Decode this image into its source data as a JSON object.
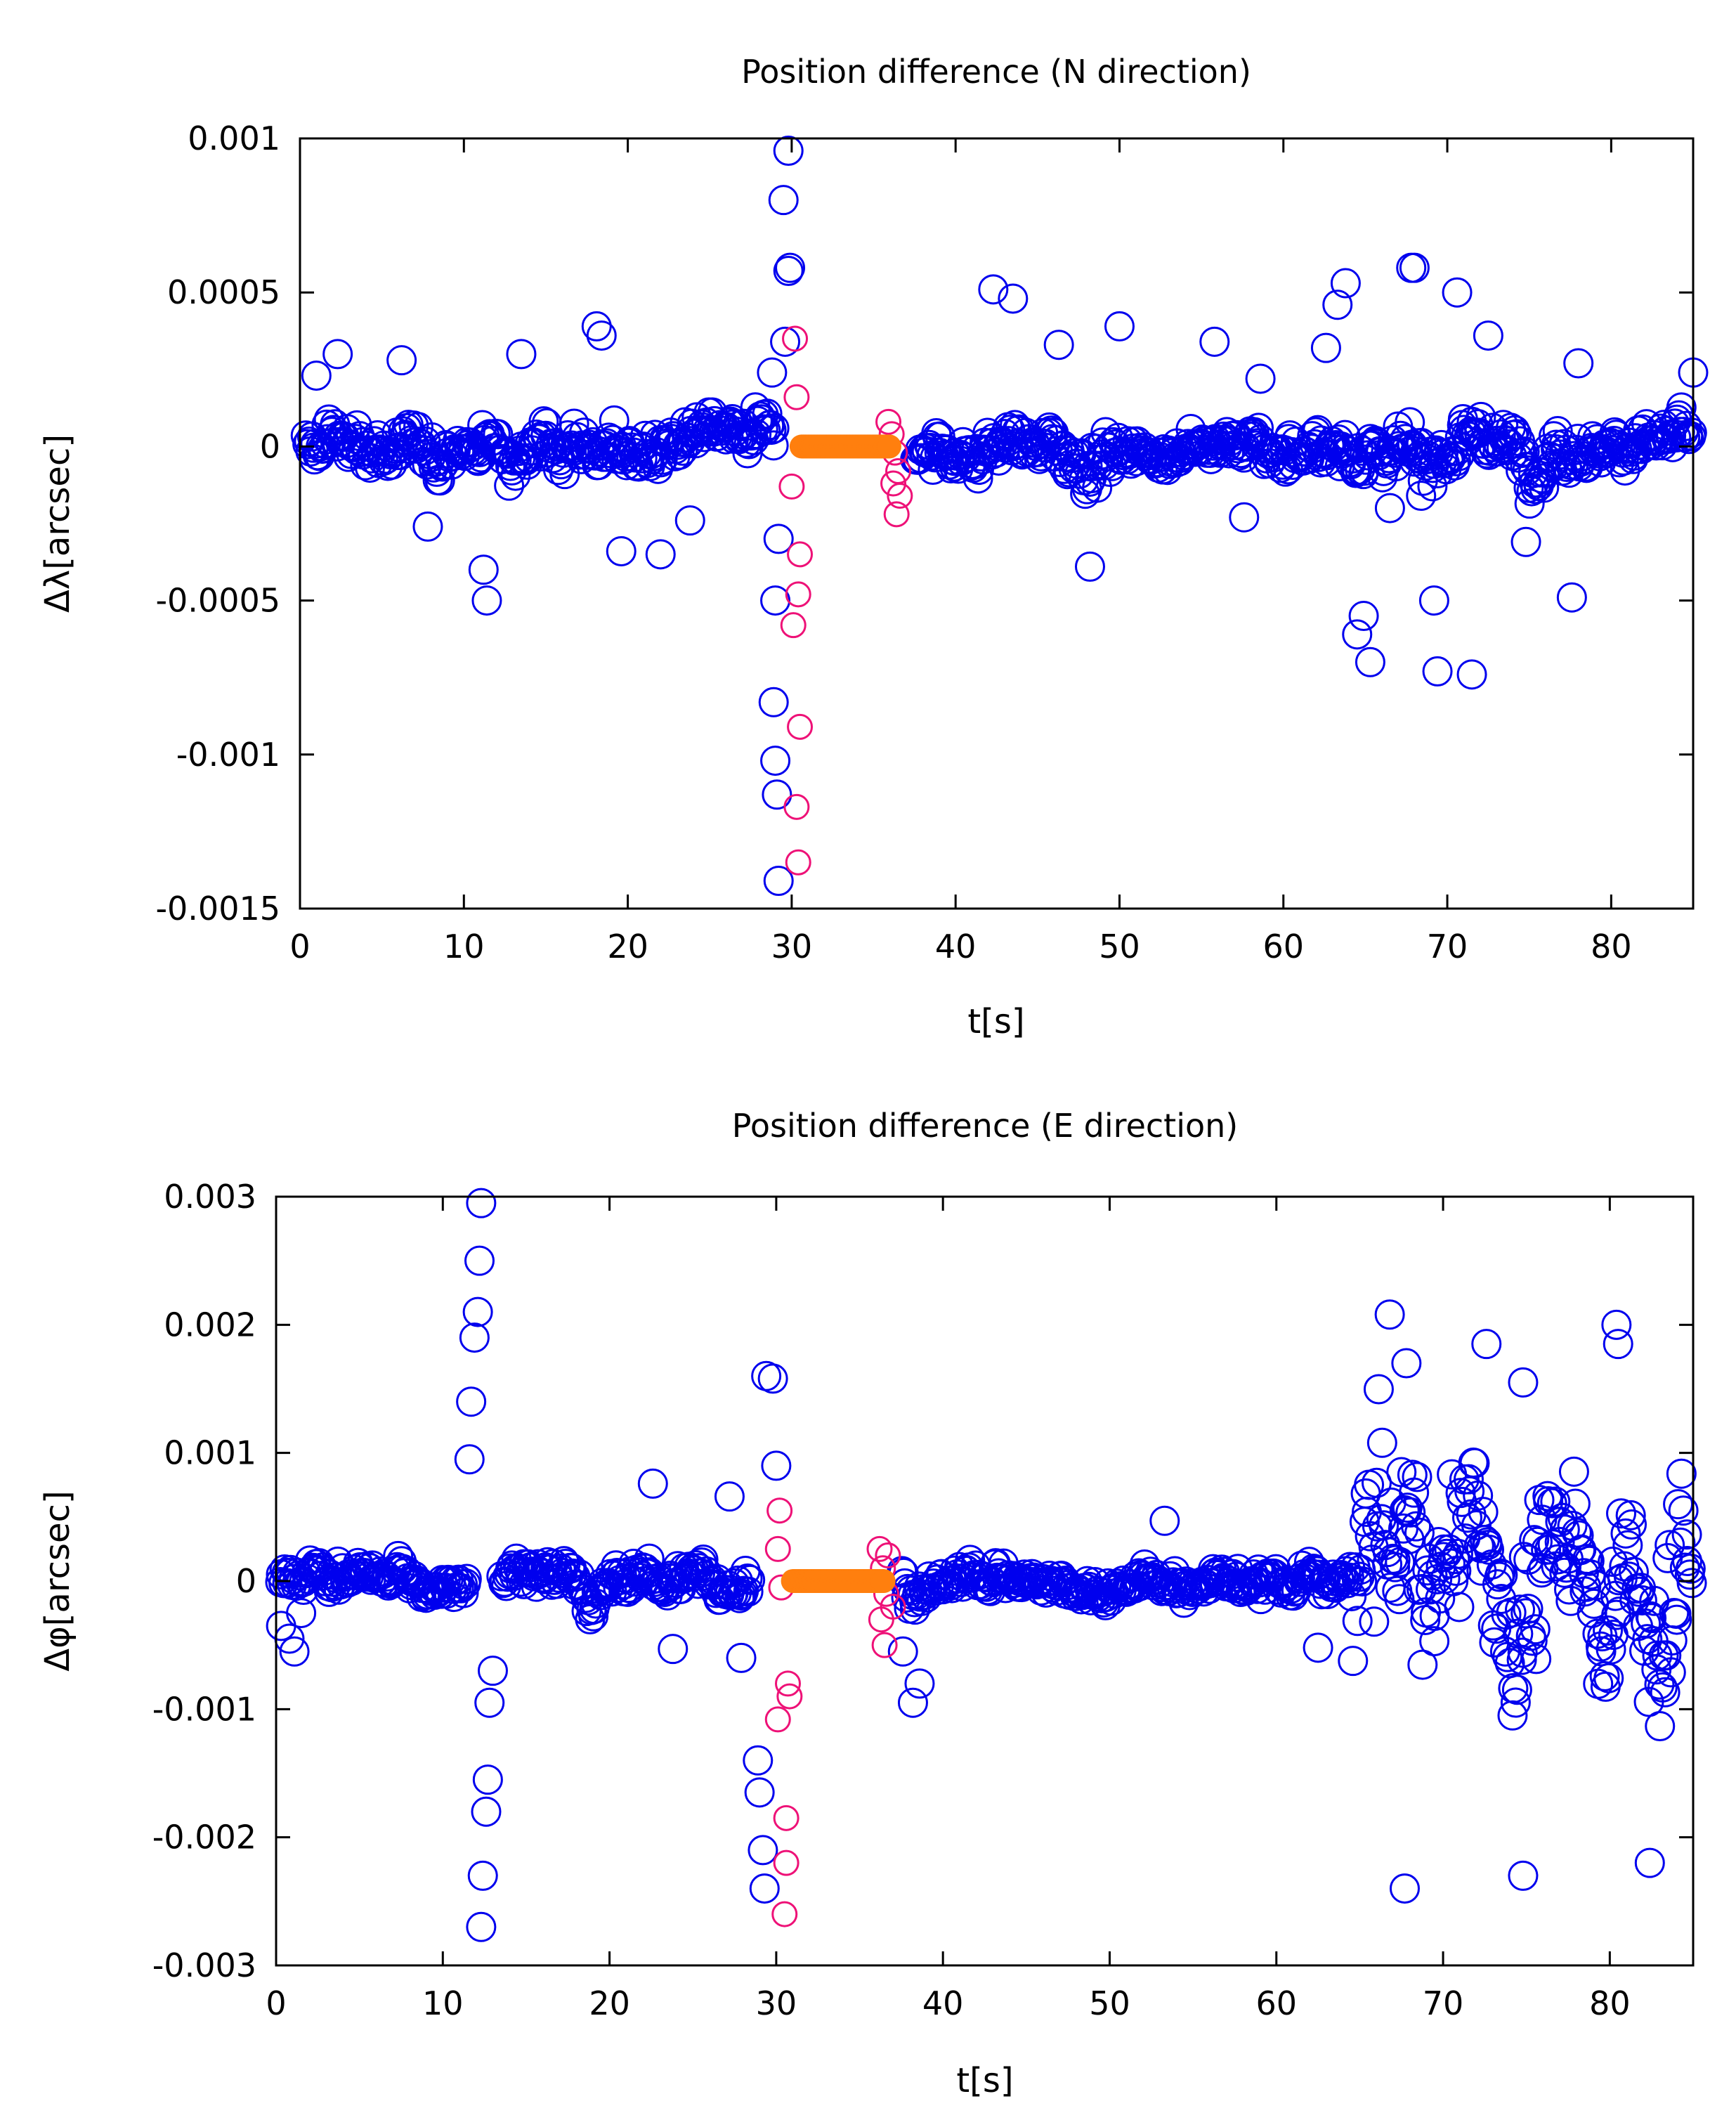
{
  "colors": {
    "blue": "#0000ee",
    "magenta": "#ee1177",
    "orange": "#ff7f0e"
  },
  "chart_data": [
    {
      "type": "scatter",
      "title": "Position difference (N direction)",
      "xlabel": "t[s]",
      "ylabel": "Δλ[arcsec]",
      "xlim": [
        0,
        85
      ],
      "ylim": [
        -0.0015,
        0.001
      ],
      "xticks": [
        0,
        10,
        20,
        30,
        40,
        50,
        60,
        70,
        80
      ],
      "xtick_labels": [
        "0",
        "10",
        "20",
        "30",
        "40",
        "50",
        "60",
        "70",
        "80"
      ],
      "yticks": [
        0.001,
        0.0005,
        0,
        -0.0005,
        -0.001,
        -0.0015
      ],
      "ytick_labels": [
        "0.001",
        "0.0005",
        "0",
        "-0.0005",
        "-0.001",
        "-0.0015"
      ],
      "grid": false,
      "legend": "none",
      "series": [
        {
          "name": "blue",
          "color": "#0000ee",
          "marker": "open-circle-large",
          "segments": [
            {
              "t0": 0.3,
              "t1": 29.0,
              "spread": 9e-05,
              "outliers": [
                [
                  1.0,
                  0.00023
                ],
                [
                  2.3,
                  0.0003
                ],
                [
                  6.2,
                  0.00028
                ],
                [
                  7.8,
                  -0.00026
                ],
                [
                  11.2,
                  -0.0004
                ],
                [
                  11.4,
                  -0.0005
                ],
                [
                  13.5,
                  0.0003
                ],
                [
                  18.1,
                  0.00039
                ],
                [
                  18.4,
                  0.00036
                ],
                [
                  19.6,
                  -0.00034
                ],
                [
                  22.0,
                  -0.00035
                ],
                [
                  23.8,
                  -0.00024
                ],
                [
                  28.8,
                  0.00024
                ],
                [
                  29.0,
                  -0.0005
                ]
              ]
            },
            {
              "t0": 37.5,
              "t1": 85.0,
              "spread": 9e-05,
              "outliers": [
                [
                  42.3,
                  0.00051
                ],
                [
                  43.5,
                  0.00048
                ],
                [
                  46.3,
                  0.00033
                ],
                [
                  48.2,
                  -0.00039
                ],
                [
                  50.0,
                  0.00039
                ],
                [
                  55.8,
                  0.00034
                ],
                [
                  57.6,
                  -0.00023
                ],
                [
                  58.6,
                  0.00022
                ],
                [
                  62.6,
                  0.00032
                ],
                [
                  63.3,
                  0.00046
                ],
                [
                  63.8,
                  0.00053
                ],
                [
                  64.5,
                  -0.00061
                ],
                [
                  64.9,
                  -0.00055
                ],
                [
                  65.3,
                  -0.0007
                ],
                [
                  66.5,
                  -0.0002
                ],
                [
                  67.8,
                  0.00058
                ],
                [
                  68.0,
                  0.00058
                ],
                [
                  68.4,
                  -0.00016
                ],
                [
                  69.2,
                  -0.0005
                ],
                [
                  69.4,
                  -0.00073
                ],
                [
                  70.6,
                  0.0005
                ],
                [
                  71.5,
                  -0.00074
                ],
                [
                  72.5,
                  0.00036
                ],
                [
                  74.8,
                  -0.00031
                ],
                [
                  77.6,
                  -0.00049
                ],
                [
                  78.0,
                  0.00027
                ],
                [
                  85.0,
                  0.00024
                ]
              ]
            }
          ],
          "vertical": [
            [
              29.2,
              -0.00141
            ],
            [
              29.1,
              -0.00113
            ],
            [
              29.0,
              -0.00102
            ],
            [
              28.9,
              -0.00083
            ],
            [
              29.2,
              -0.0003
            ],
            [
              29.6,
              0.00034
            ],
            [
              29.8,
              0.00057
            ],
            [
              29.9,
              0.00058
            ],
            [
              29.5,
              0.0008
            ],
            [
              29.8,
              0.00096
            ]
          ]
        },
        {
          "name": "magenta",
          "color": "#ee1177",
          "marker": "open-circle",
          "points": [
            [
              30.2,
              0.00035
            ],
            [
              30.3,
              0.00016
            ],
            [
              30.0,
              -0.00013
            ],
            [
              30.5,
              -0.00035
            ],
            [
              30.4,
              -0.00048
            ],
            [
              30.1,
              -0.00058
            ],
            [
              30.5,
              -0.00091
            ],
            [
              30.3,
              -0.00117
            ],
            [
              30.4,
              -0.00135
            ],
            [
              35.9,
              8e-05
            ],
            [
              36.1,
              4e-05
            ],
            [
              36.3,
              -2e-05
            ],
            [
              36.5,
              -8e-05
            ],
            [
              36.2,
              -0.00012
            ],
            [
              36.6,
              -0.00016
            ],
            [
              36.4,
              -0.00022
            ]
          ]
        },
        {
          "name": "orange",
          "color": "#ff7f0e",
          "marker": "filled-dense",
          "x_range": [
            30.6,
            36.0
          ],
          "y": 0
        }
      ]
    },
    {
      "type": "scatter",
      "title": "Position difference (E direction)",
      "xlabel": "t[s]",
      "ylabel": "Δφ[arcsec]",
      "xlim": [
        0,
        85
      ],
      "ylim": [
        -0.003,
        0.003
      ],
      "xticks": [
        0,
        10,
        20,
        30,
        40,
        50,
        60,
        70,
        80
      ],
      "xtick_labels": [
        "0",
        "10",
        "20",
        "30",
        "40",
        "50",
        "60",
        "70",
        "80"
      ],
      "yticks": [
        0.003,
        0.002,
        0.001,
        0,
        -0.001,
        -0.002,
        -0.003
      ],
      "ytick_labels": [
        "0.003",
        "0.002",
        "0.001",
        "0",
        "-0.001",
        "-0.002",
        "-0.003"
      ],
      "grid": false,
      "legend": "none",
      "series": [
        {
          "name": "blue",
          "color": "#0000ee",
          "marker": "open-circle-large",
          "segments": [
            {
              "t0": 0.2,
              "t1": 11.5,
              "spread": 0.00015,
              "outliers": [
                [
                  0.3,
                  -0.00035
                ],
                [
                  0.8,
                  -0.00045
                ],
                [
                  1.1,
                  -0.00055
                ],
                [
                  1.5,
                  -0.00025
                ]
              ]
            },
            {
              "t0": 13.5,
              "t1": 28.5,
              "spread": 0.00018,
              "outliers": [
                [
                  22.6,
                  0.00076
                ],
                [
                  23.8,
                  -0.00053
                ],
                [
                  27.2,
                  0.00066
                ],
                [
                  27.9,
                  -0.0006
                ]
              ]
            },
            {
              "t0": 37.5,
              "t1": 64.5,
              "spread": 0.00016,
              "outliers": [
                [
                  37.6,
                  -0.00055
                ],
                [
                  38.2,
                  -0.00095
                ],
                [
                  38.6,
                  -0.0008
                ],
                [
                  53.3,
                  0.00047
                ],
                [
                  62.5,
                  -0.00052
                ]
              ]
            },
            {
              "t0": 64.5,
              "t1": 85.0,
              "spread": 0.0009,
              "outliers": []
            }
          ],
          "vertical": [
            [
              11.6,
              0.00095
            ],
            [
              11.7,
              0.0014
            ],
            [
              11.9,
              0.0019
            ],
            [
              12.1,
              0.0021
            ],
            [
              12.2,
              0.0025
            ],
            [
              12.3,
              0.00295
            ],
            [
              12.4,
              -0.0023
            ],
            [
              12.3,
              -0.0027
            ],
            [
              12.7,
              -0.00155
            ],
            [
              12.6,
              -0.0018
            ],
            [
              12.8,
              -0.00095
            ],
            [
              13.0,
              -0.0007
            ],
            [
              28.9,
              -0.0014
            ],
            [
              29.0,
              -0.00165
            ],
            [
              29.2,
              -0.0021
            ],
            [
              29.3,
              -0.0024
            ],
            [
              29.4,
              0.0016
            ],
            [
              29.8,
              0.00158
            ],
            [
              30.0,
              0.0009
            ],
            [
              66.8,
              0.00208
            ],
            [
              67.8,
              0.0017
            ],
            [
              67.7,
              -0.0024
            ],
            [
              72.6,
              0.00185
            ],
            [
              74.8,
              0.00155
            ],
            [
              74.8,
              -0.0023
            ],
            [
              80.4,
              0.002
            ],
            [
              80.5,
              0.00185
            ],
            [
              82.4,
              -0.0022
            ]
          ]
        },
        {
          "name": "magenta",
          "color": "#ee1177",
          "marker": "open-circle",
          "points": [
            [
              30.2,
              0.00055
            ],
            [
              30.1,
              0.00025
            ],
            [
              30.3,
              -5e-05
            ],
            [
              30.7,
              -0.0008
            ],
            [
              30.8,
              -0.0009
            ],
            [
              30.1,
              -0.00108
            ],
            [
              30.6,
              -0.00185
            ],
            [
              30.6,
              -0.0022
            ],
            [
              30.5,
              -0.0026
            ],
            [
              36.2,
              0.00025
            ],
            [
              36.4,
              0.0001
            ],
            [
              36.6,
              -0.0001
            ],
            [
              36.3,
              -0.0003
            ],
            [
              36.5,
              -0.0005
            ],
            [
              36.7,
              0.0002
            ],
            [
              37.0,
              -0.0002
            ]
          ]
        },
        {
          "name": "orange",
          "color": "#ff7f0e",
          "marker": "filled-dense",
          "x_range": [
            31.0,
            36.5
          ],
          "y": 0
        }
      ]
    }
  ]
}
